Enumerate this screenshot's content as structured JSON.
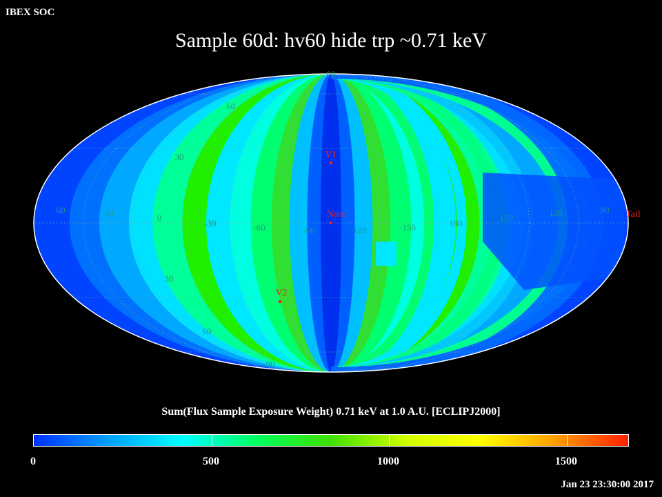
{
  "header": {
    "org": "IBEX SOC",
    "title": "Sample 60d: hv60 hide trp ~0.71 keV"
  },
  "map": {
    "projection": "mollweide",
    "grid": true,
    "lat_labels": [
      "60",
      "30",
      "30",
      "60",
      "90",
      "-90"
    ],
    "lon_labels": [
      "60",
      "30",
      "0",
      "-30",
      "-60",
      "-90",
      "-120",
      "-150",
      "180",
      "150",
      "120",
      "90"
    ],
    "markers": [
      {
        "name": "V1",
        "color": "#e0281c"
      },
      {
        "name": "Nose",
        "color": "#e0281c"
      },
      {
        "name": "V2",
        "color": "#e0281c"
      },
      {
        "name": "Tail",
        "color": "#e0281c"
      }
    ],
    "grid_label_color": "#1a9a7a"
  },
  "colorbar": {
    "title": "Sum(Flux Sample Exposure Weight)  0.71 keV at 1.0 A.U. [ECLIPJ2000]",
    "min": 0,
    "max": 1700,
    "labels": [
      "0",
      "500",
      "1000",
      "1500"
    ],
    "stops": [
      "#0030ff",
      "#00a0ff",
      "#00ffff",
      "#00ff60",
      "#40e000",
      "#d0ff00",
      "#ffff00",
      "#ffa000",
      "#ff2000"
    ]
  },
  "footer": {
    "timestamp": "Jan 23 23:30:00 2017"
  }
}
